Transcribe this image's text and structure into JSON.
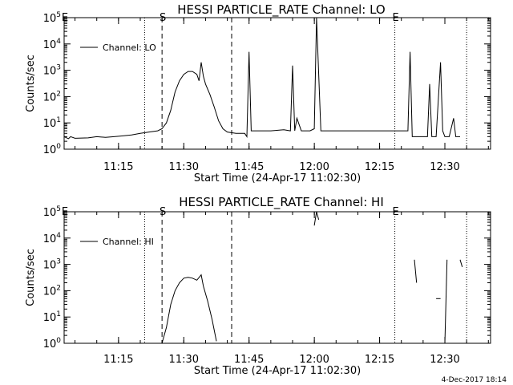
{
  "chart_data": [
    {
      "type": "line",
      "title": "HESSI PARTICLE_RATE Channel: LO",
      "xlabel": "Start Time (24-Apr-17 11:02:30)",
      "ylabel": "Counts/sec",
      "yscale": "log",
      "ylim": [
        1,
        100000
      ],
      "xlim": [
        "11:02:30",
        "12:40:30"
      ],
      "x_ticks": [
        "11:15",
        "11:30",
        "11:45",
        "12:00",
        "12:15",
        "12:30"
      ],
      "y_ticks": [
        "10^0",
        "10^1",
        "10^2",
        "10^3",
        "10^4",
        "10^5"
      ],
      "legend": {
        "label": "Channel: LO",
        "position": "top-left"
      },
      "markers": [
        {
          "label": "E",
          "time": "11:02:30",
          "style": "dotted"
        },
        {
          "label": "",
          "time": "11:21:00",
          "style": "dotted"
        },
        {
          "label": "S",
          "time": "11:25:00",
          "style": "dashed"
        },
        {
          "label": "",
          "time": "11:41:00",
          "style": "dashed"
        },
        {
          "label": "E",
          "time": "12:18:30",
          "style": "dotted"
        },
        {
          "label": "",
          "time": "12:35:00",
          "style": "dotted"
        }
      ],
      "series": [
        {
          "name": "Channel: LO",
          "points": [
            [
              "11:02:30",
              3
            ],
            [
              "11:03:30",
              2.5
            ],
            [
              "11:04:00",
              3
            ],
            [
              "11:05:00",
              2.6
            ],
            [
              "11:08:00",
              2.7
            ],
            [
              "11:10:00",
              3
            ],
            [
              "11:12:00",
              2.8
            ],
            [
              "11:14:00",
              3
            ],
            [
              "11:16:00",
              3.2
            ],
            [
              "11:18:00",
              3.5
            ],
            [
              "11:20:00",
              4
            ],
            [
              "11:22:00",
              4.5
            ],
            [
              "11:24:00",
              5
            ],
            [
              "11:25:00",
              6
            ],
            [
              "11:26:00",
              10
            ],
            [
              "11:27:00",
              30
            ],
            [
              "11:28:00",
              150
            ],
            [
              "11:29:00",
              400
            ],
            [
              "11:30:00",
              700
            ],
            [
              "11:31:00",
              900
            ],
            [
              "11:32:00",
              900
            ],
            [
              "11:33:00",
              700
            ],
            [
              "11:33:30",
              400
            ],
            [
              "11:34:00",
              2000
            ],
            [
              "11:34:30",
              600
            ],
            [
              "11:35:00",
              300
            ],
            [
              "11:36:00",
              120
            ],
            [
              "11:37:00",
              40
            ],
            [
              "11:38:00",
              12
            ],
            [
              "11:39:00",
              6
            ],
            [
              "11:40:00",
              4.5
            ],
            [
              "11:42:00",
              4
            ],
            [
              "11:44:00",
              4
            ],
            [
              "11:44:30",
              3
            ],
            [
              "11:45:00",
              5000
            ],
            [
              "11:45:30",
              5
            ],
            [
              "11:47:00",
              5
            ],
            [
              "11:50:00",
              5
            ],
            [
              "11:53:00",
              5.5
            ],
            [
              "11:54:30",
              5
            ],
            [
              "11:55:00",
              1500
            ],
            [
              "11:55:30",
              5
            ],
            [
              "11:56:00",
              15
            ],
            [
              "11:57:00",
              5
            ],
            [
              "11:59:00",
              5
            ],
            [
              "12:00:00",
              6
            ],
            [
              "12:00:30",
              100000
            ],
            [
              "12:01:30",
              5
            ],
            [
              "12:03:00",
              5
            ],
            [
              "12:08:00",
              5
            ],
            [
              "12:13:00",
              5
            ],
            [
              "12:18:30",
              5
            ],
            [
              "12:20:00",
              5
            ],
            [
              "12:21:30",
              5
            ],
            [
              "12:22:00",
              5000
            ],
            [
              "12:22:30",
              3
            ],
            [
              "12:24:00",
              3
            ],
            [
              "12:26:00",
              3
            ],
            [
              "12:26:30",
              300
            ],
            [
              "12:27:00",
              3
            ],
            [
              "12:28:00",
              3
            ],
            [
              "12:29:00",
              2000
            ],
            [
              "12:29:30",
              5
            ],
            [
              "12:30:00",
              3
            ],
            [
              "12:31:00",
              3
            ],
            [
              "12:32:00",
              15
            ],
            [
              "12:32:30",
              3
            ],
            [
              "12:33:30",
              3
            ]
          ]
        }
      ]
    },
    {
      "type": "line",
      "title": "HESSI PARTICLE_RATE Channel: HI",
      "xlabel": "Start Time (24-Apr-17 11:02:30)",
      "ylabel": "Counts/sec",
      "yscale": "log",
      "ylim": [
        1,
        100000
      ],
      "xlim": [
        "11:02:30",
        "12:40:30"
      ],
      "x_ticks": [
        "11:15",
        "11:30",
        "11:45",
        "12:00",
        "12:15",
        "12:30"
      ],
      "y_ticks": [
        "10^0",
        "10^1",
        "10^2",
        "10^3",
        "10^4",
        "10^5"
      ],
      "legend": {
        "label": "Channel: HI",
        "position": "top-left"
      },
      "markers": [
        {
          "label": "E",
          "time": "11:02:30",
          "style": "dotted"
        },
        {
          "label": "",
          "time": "11:21:00",
          "style": "dotted"
        },
        {
          "label": "S",
          "time": "11:25:00",
          "style": "dashed"
        },
        {
          "label": "",
          "time": "11:41:00",
          "style": "dashed"
        },
        {
          "label": "E",
          "time": "12:18:30",
          "style": "dotted"
        },
        {
          "label": "",
          "time": "12:35:00",
          "style": "dotted"
        }
      ],
      "series": [
        {
          "name": "Channel: HI",
          "segments": [
            [
              [
                "11:25:00",
                1
              ],
              [
                "11:26:00",
                4
              ],
              [
                "11:27:00",
                30
              ],
              [
                "11:28:00",
                100
              ],
              [
                "11:29:00",
                200
              ],
              [
                "11:30:00",
                300
              ],
              [
                "11:31:00",
                320
              ],
              [
                "11:32:00",
                300
              ],
              [
                "11:33:00",
                250
              ],
              [
                "11:34:00",
                400
              ],
              [
                "11:34:30",
                150
              ],
              [
                "11:35:30",
                40
              ],
              [
                "11:36:30",
                8
              ],
              [
                "11:37:30",
                1.2
              ]
            ],
            [
              [
                "12:00:00",
                30000
              ],
              [
                "12:00:30",
                100000
              ],
              [
                "12:01:00",
                50000
              ]
            ],
            [
              [
                "12:23:00",
                1500
              ],
              [
                "12:23:30",
                200
              ]
            ],
            [
              [
                "12:28:00",
                50
              ],
              [
                "12:29:00",
                50
              ]
            ],
            [
              [
                "12:30:00",
                1
              ],
              [
                "12:30:30",
                1500
              ]
            ],
            [
              [
                "12:33:30",
                1500
              ],
              [
                "12:34:00",
                800
              ]
            ]
          ]
        }
      ]
    }
  ],
  "footer": {
    "timestamp": "4-Dec-2017 18:14"
  }
}
